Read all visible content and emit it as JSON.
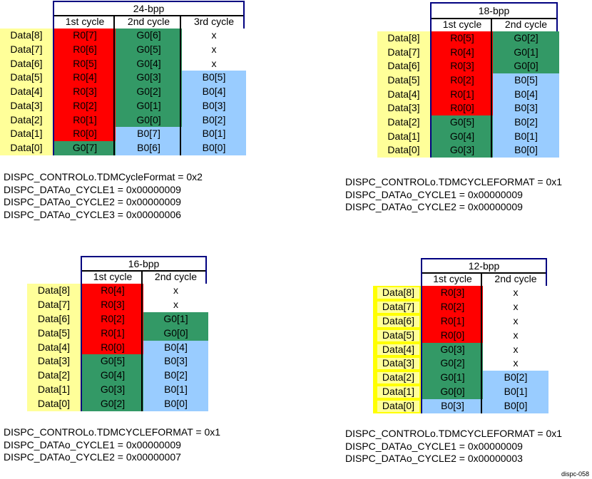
{
  "colors": {
    "R": "#ff0000",
    "G": "#339966",
    "B": "#99ccff",
    "X": "#ffffff",
    "label": "#ffff99",
    "border": "#000080"
  },
  "row_labels": [
    "Data[8]",
    "Data[7]",
    "Data[6]",
    "Data[5]",
    "Data[4]",
    "Data[3]",
    "Data[2]",
    "Data[1]",
    "Data[0]"
  ],
  "tables": [
    {
      "title": "24-bpp",
      "headers": [
        "1st cycle",
        "2nd cycle",
        "3rd cycle"
      ],
      "columns": [
        [
          "R0[7]",
          "R0[6]",
          "R0[5]",
          "R0[4]",
          "R0[3]",
          "R0[2]",
          "R0[1]",
          "R0[0]",
          "G0[7]"
        ],
        [
          "G0[6]",
          "G0[5]",
          "G0[4]",
          "G0[3]",
          "G0[2]",
          "G0[1]",
          "G0[0]",
          "B0[7]",
          "B0[6]"
        ],
        [
          "x",
          "x",
          "x",
          "B0[5]",
          "B0[4]",
          "B0[3]",
          "B0[2]",
          "B0[1]",
          "B0[0]"
        ]
      ],
      "registers": [
        "DISPC_CONTROLo.TDMCycleFormat = 0x2",
        "DISPC_DATAo_CYCLE1 = 0x00000009",
        "DISPC_DATAo_CYCLE2 = 0x00000009",
        "DISPC_DATAo_CYCLE3 = 0x00000006"
      ]
    },
    {
      "title": "18-bpp",
      "headers": [
        "1st cycle",
        "2nd cycle"
      ],
      "columns": [
        [
          "R0[5]",
          "R0[4]",
          "R0[3]",
          "R0[2]",
          "R0[1]",
          "R0[0]",
          "G0[5]",
          "G0[4]",
          "G0[3]"
        ],
        [
          "G0[2]",
          "G0[1]",
          "G0[0]",
          "B0[5]",
          "B0[4]",
          "B0[3]",
          "B0[2]",
          "B0[1]",
          "B0[0]"
        ]
      ],
      "registers": [
        "DISPC_CONTROLo.TDMCYCLEFORMAT = 0x1",
        "DISPC_DATAo_CYCLE1 = 0x00000009",
        "DISPC_DATAo_CYCLE2 = 0x00000009"
      ]
    },
    {
      "title": "16-bpp",
      "headers": [
        "1st cycle",
        "2nd cycle"
      ],
      "columns": [
        [
          "R0[4]",
          "R0[3]",
          "R0[2]",
          "R0[1]",
          "R0[0]",
          "G0[5]",
          "G0[4]",
          "G0[3]",
          "G0[2]"
        ],
        [
          "x",
          "x",
          "G0[1]",
          "G0[0]",
          "B0[4]",
          "B0[3]",
          "B0[2]",
          "B0[1]",
          "B0[0]"
        ]
      ],
      "registers": [
        "DISPC_CONTROLo.TDMCYCLEFORMAT = 0x1",
        "DISPC_DATAo_CYCLE1 = 0x00000009",
        "DISPC_DATAo_CYCLE2 = 0x00000007"
      ]
    },
    {
      "title": "12-bpp",
      "headers": [
        "1st cycle",
        "2nd cycle"
      ],
      "columns": [
        [
          "R0[3]",
          "R0[2]",
          "R0[1]",
          "R0[0]",
          "G0[3]",
          "G0[2]",
          "G0[1]",
          "G0[0]",
          "B0[3]"
        ],
        [
          "x",
          "x",
          "x",
          "x",
          "x",
          "x",
          "B0[2]",
          "B0[1]",
          "B0[0]"
        ]
      ],
      "registers": [
        "DISPC_CONTROLo.TDMCYCLEFORMAT = 0x1",
        "DISPC_DATAo_CYCLE1 = 0x00000009",
        "DISPC_DATAo_CYCLE2 = 0x00000003"
      ]
    }
  ],
  "figure_id": "dispc-058"
}
